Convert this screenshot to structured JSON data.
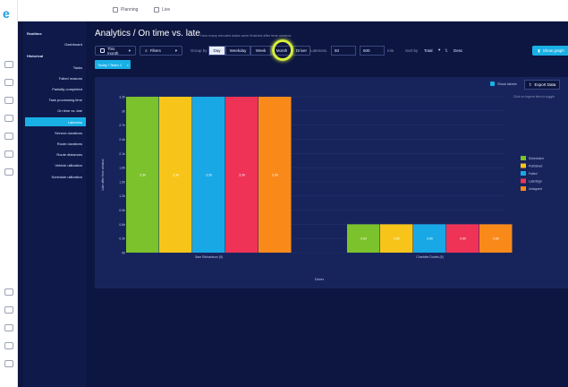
{
  "topnav": {
    "planning": "Planning",
    "live": "Live"
  },
  "sidebar": {
    "items": [
      {
        "label": "Realtime",
        "type": "header"
      },
      {
        "label": "Dashboard",
        "type": "item"
      },
      {
        "label": "Historical",
        "type": "header"
      },
      {
        "label": "Tasks",
        "type": "item"
      },
      {
        "label": "Failed reasons",
        "type": "item"
      },
      {
        "label": "Partially completed",
        "type": "item"
      },
      {
        "label": "Task processing time",
        "type": "item"
      },
      {
        "label": "On time vs. late",
        "type": "item"
      },
      {
        "label": "Lateness",
        "type": "item",
        "active": true
      },
      {
        "label": "Service durations",
        "type": "item"
      },
      {
        "label": "Route durations",
        "type": "item"
      },
      {
        "label": "Route distances",
        "type": "item"
      },
      {
        "label": "Vehicle utilization",
        "type": "item"
      },
      {
        "label": "Schedule utilization",
        "type": "item"
      }
    ]
  },
  "header": {
    "title": "Analytics / On time vs. late",
    "subtitle": "How many minutes tasks were finished after time window"
  },
  "toolbar": {
    "period": "This month",
    "filters": "Filters",
    "group_by_label": "Group by",
    "group_by": [
      {
        "label": "Day",
        "selected": true
      },
      {
        "label": "Weekday",
        "selected": false
      },
      {
        "label": "Week",
        "selected": false
      },
      {
        "label": "Month",
        "selected": false
      },
      {
        "label": "Driver",
        "selected": false
      }
    ],
    "lateness_label": "Lateness",
    "lateness_from": "50",
    "lateness_to": "500",
    "unit": "min",
    "sort_label": "Sort by",
    "sort_value": "Total",
    "sort_dir": "Desc",
    "show_graph": "Show graph",
    "chip": "Today / Team 1"
  },
  "panel": {
    "show_labels": "Show labels",
    "export": "Export Data",
    "hint": "Click on legend item to toggle"
  },
  "colors": {
    "series": [
      "#7cc22d",
      "#f7c51a",
      "#19a8e6",
      "#ee3356",
      "#f98a1a"
    ],
    "accent": "#19b0e6",
    "app_bg": "#0d1640",
    "panel_bg": "#17245c"
  },
  "chart_data": {
    "type": "bar",
    "stacked": false,
    "categories": [
      "Sam Richardson (5)",
      "Charlotte Dudek (5)"
    ],
    "xlabel": "Driver",
    "ylabel": "Late after time window",
    "ylim": [
      0,
      3.3
    ],
    "yticks": [
      "0h",
      "0.3h",
      "0.6h",
      "0.9h",
      "1.2h",
      "1.5h",
      "1.8h",
      "2.1h",
      "2.4h",
      "2.7h",
      "3h",
      "3.3h"
    ],
    "series": [
      {
        "name": "Scheduled",
        "values": [
          3.3,
          0.6
        ]
      },
      {
        "name": "Published",
        "values": [
          3.3,
          0.6
        ]
      },
      {
        "name": "Failed",
        "values": [
          3.3,
          0.6
        ]
      },
      {
        "name": "Late/Sign",
        "values": [
          3.3,
          0.6
        ]
      },
      {
        "name": "Unsigned",
        "values": [
          3.3,
          0.6
        ]
      }
    ],
    "data_labels": [
      [
        "3.3h",
        "3.3h",
        "3.3h",
        "3.3h",
        "3.3h"
      ],
      [
        "0.6h",
        "0.6h",
        "0.6h",
        "0.6h",
        "0.6h"
      ]
    ],
    "legend_position": "right",
    "grid": true
  }
}
